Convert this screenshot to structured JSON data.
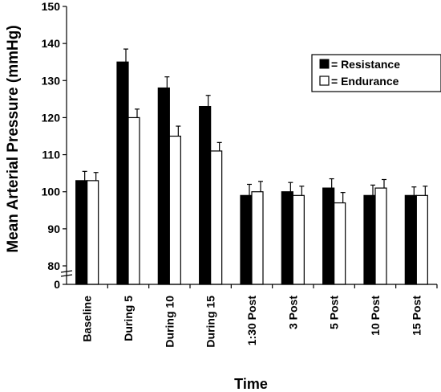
{
  "chart_data": {
    "type": "bar",
    "title": "",
    "xlabel": "Time",
    "ylabel": "Mean Arterial Pressure (mmHg)",
    "categories": [
      "Baseline",
      "During 5",
      "During 10",
      "During 15",
      "1:30 Post",
      "3 Post",
      "5 Post",
      "10 Post",
      "15 Post"
    ],
    "series": [
      {
        "name": "= Resistance",
        "color": "#000000",
        "values": [
          103,
          135,
          128,
          123,
          99,
          100,
          101,
          99,
          99
        ],
        "errors": [
          2.5,
          3.5,
          3,
          3,
          3,
          2.5,
          2.5,
          2.8,
          2.3
        ]
      },
      {
        "name": "= Endurance",
        "color": "#ffffff",
        "values": [
          103,
          120,
          115,
          111,
          100,
          99,
          97,
          101,
          99
        ],
        "errors": [
          2.2,
          2.3,
          2.7,
          2.3,
          2.8,
          2.5,
          2.8,
          2.3,
          2.5
        ]
      }
    ],
    "y_ticks": [
      "0",
      "80",
      "90",
      "100",
      "110",
      "120",
      "130",
      "140",
      "150"
    ],
    "y_break": {
      "from": 0,
      "to": 80
    },
    "ylim": [
      0,
      150
    ],
    "grid": false,
    "legend_position": "top-right"
  }
}
